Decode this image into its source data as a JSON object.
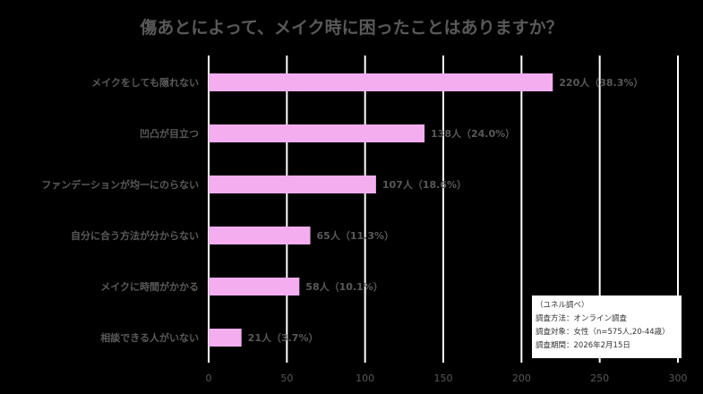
{
  "chart_data": {
    "type": "bar",
    "orientation": "horizontal",
    "title": "傷あとによって、メイク時に困ったことはありますか？",
    "categories": [
      "メイクをしても隠れない",
      "凹凸が目立つ",
      "ファンデーションが均一にのらない",
      "自分に合う方法が分からない",
      "メイクに時間がかかる",
      "相談できる人がいない"
    ],
    "values": [
      220,
      138,
      107,
      65,
      58,
      21
    ],
    "data_labels": [
      "220人（38.3%）",
      "138人（24.0%）",
      "107人（18.6%）",
      "65人（11.3%）",
      "58人（10.1%）",
      "21人（3.7%）"
    ],
    "xlim": [
      0,
      300
    ],
    "xticks": [
      0,
      50,
      100,
      150,
      200,
      250,
      300
    ],
    "xtick_labels": [
      "0",
      "50",
      "100",
      "150",
      "200",
      "250",
      "300"
    ],
    "grid": true,
    "colors": {
      "bar": "#f4aef0",
      "grid": "#ffffff",
      "text": "#595959",
      "background": "#000000"
    }
  },
  "note": {
    "source": "（ユネル調べ）",
    "method": "調査方法：オンライン調査",
    "target": "調査対象：女性（n=575人,20-44歳）",
    "period": "調査期間：2026年2月15日"
  }
}
